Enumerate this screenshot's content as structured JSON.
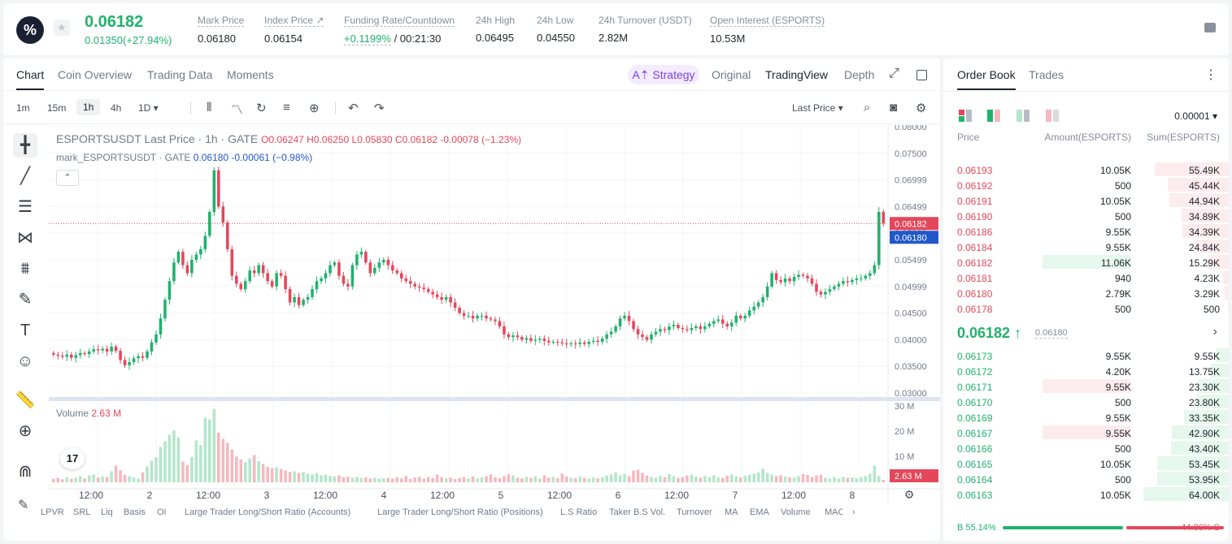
{
  "header": {
    "logo_glyph": "%",
    "star": "★",
    "last_price": "0.06182",
    "change": "0.01350(+27.94%)",
    "stats": [
      {
        "label": "Mark Price",
        "value": "0.06180"
      },
      {
        "label": "Index Price ↗",
        "value": "0.06154"
      },
      {
        "label": "Funding Rate/Countdown",
        "value_green": "+0.1199%",
        "value": " / 00:21:30"
      },
      {
        "label": "24h High",
        "value": "0.06495"
      },
      {
        "label": "24h Low",
        "value": "0.04550"
      },
      {
        "label": "24h Turnover (USDT)",
        "value": "2.82M"
      },
      {
        "label": "Open Interest (ESPORTS)",
        "value": "10.53M"
      }
    ]
  },
  "chart_tabs": [
    "Chart",
    "Coin Overview",
    "Trading Data",
    "Moments"
  ],
  "view_controls": {
    "strategy": "A⇡ Strategy",
    "original": "Original",
    "tradingview": "TradingView",
    "depth": "Depth",
    "expand": "⤢"
  },
  "timeframes": [
    "1m",
    "15m",
    "1h",
    "4h",
    "1D ▾"
  ],
  "toolbar_icons": {
    "candles": "⫴",
    "indicators": "〽",
    "replay": "↻",
    "templates": "≡",
    "alert": "⊕",
    "undo": "↶",
    "redo": "↷",
    "search": "⌕",
    "camera": "◙",
    "settings": "⚙"
  },
  "last_price_selector": "Last Price ▾",
  "draw_icons": [
    "╋",
    "╱",
    "☰",
    "⋈",
    "⩩",
    "✎",
    "T",
    "☺",
    "📏",
    "⊕",
    "⋒"
  ],
  "legend": {
    "main": "ESPORTSUSDT Last Price · 1h · GATE",
    "ohlc": "O0.06247 H0.06250 L0.05830 C0.06182 -0.00078 (−1.23%)",
    "mark_label": "mark_ESPORTSUSDT · GATE",
    "mark_values": "0.06180 -0.00061 (−0.98%)",
    "collapse": "⌃",
    "volume_label": "Volume",
    "volume_value": "2.63 M"
  },
  "tv_logo": "17",
  "indicators": [
    "LPVR",
    "SRL",
    "Liq",
    "Basis",
    "OI",
    "Large Trader Long/Short Ratio (Accounts)",
    "Large Trader Long/Short Ratio (Positions)",
    "L.S Ratio",
    "Taker B.S Vol.",
    "Turnover",
    "MA",
    "EMA",
    "Volume",
    "MACD"
  ],
  "chart_data": {
    "type": "candlestick",
    "price_axis": [
      "0.08000",
      "0.07500",
      "0.06999",
      "0.06499",
      "0.05999",
      "0.05499",
      "0.04999",
      "0.04500",
      "0.04000",
      "0.03500",
      "0.03000"
    ],
    "volume_axis": [
      "30 M",
      "20 M",
      "10 M"
    ],
    "x_ticks": [
      "12:00",
      "2",
      "12:00",
      "3",
      "12:00",
      "4",
      "12:00",
      "5",
      "12:00",
      "6",
      "12:00",
      "7",
      "12:00",
      "8"
    ],
    "last_price_label": "0.06182",
    "mark_price_label": "0.06180",
    "volume_last_label": "2.63 M",
    "ylim": [
      0.03,
      0.08
    ],
    "close_path": [
      0.0372,
      0.037,
      0.0368,
      0.0372,
      0.0366,
      0.0371,
      0.0375,
      0.0373,
      0.0378,
      0.0382,
      0.038,
      0.0383,
      0.0378,
      0.0387,
      0.0379,
      0.0362,
      0.0352,
      0.0358,
      0.0365,
      0.0369,
      0.0366,
      0.0378,
      0.0395,
      0.041,
      0.044,
      0.0475,
      0.051,
      0.0545,
      0.0565,
      0.054,
      0.0525,
      0.055,
      0.056,
      0.057,
      0.0595,
      0.064,
      0.0718,
      0.065,
      0.062,
      0.057,
      0.052,
      0.0505,
      0.0495,
      0.051,
      0.053,
      0.0525,
      0.054,
      0.0525,
      0.051,
      0.05,
      0.0525,
      0.052,
      0.0495,
      0.047,
      0.048,
      0.0465,
      0.0475,
      0.048,
      0.0495,
      0.051,
      0.0515,
      0.0525,
      0.054,
      0.0545,
      0.052,
      0.0505,
      0.05,
      0.054,
      0.056,
      0.0565,
      0.0545,
      0.0525,
      0.0535,
      0.0545,
      0.055,
      0.054,
      0.053,
      0.0525,
      0.0515,
      0.051,
      0.0505,
      0.05,
      0.0498,
      0.0495,
      0.049,
      0.0485,
      0.048,
      0.0475,
      0.048,
      0.047,
      0.046,
      0.045,
      0.0445,
      0.0445,
      0.044,
      0.0445,
      0.0445,
      0.044,
      0.0438,
      0.0435,
      0.0425,
      0.041,
      0.0405,
      0.0408,
      0.0405,
      0.04,
      0.0403,
      0.0398,
      0.04,
      0.0402,
      0.0398,
      0.0395,
      0.0396,
      0.0395,
      0.0393,
      0.0392,
      0.0393,
      0.0392,
      0.0395,
      0.0392,
      0.0396,
      0.0398,
      0.0396,
      0.0402,
      0.041,
      0.0415,
      0.0425,
      0.044,
      0.0445,
      0.0435,
      0.042,
      0.041,
      0.0405,
      0.04,
      0.041,
      0.0415,
      0.042,
      0.0418,
      0.0425,
      0.0428,
      0.0422,
      0.042,
      0.0418,
      0.0422,
      0.0425,
      0.042,
      0.0425,
      0.043,
      0.0435,
      0.0438,
      0.043,
      0.0425,
      0.0432,
      0.0445,
      0.044,
      0.0445,
      0.0455,
      0.0462,
      0.047,
      0.048,
      0.05,
      0.0525,
      0.0512,
      0.0508,
      0.0515,
      0.051,
      0.0518,
      0.0522,
      0.052,
      0.0515,
      0.0505,
      0.049,
      0.0485,
      0.049,
      0.0495,
      0.05,
      0.0505,
      0.051,
      0.0508,
      0.0512,
      0.0515,
      0.0515,
      0.052,
      0.0525,
      0.054,
      0.064,
      0.0618
    ],
    "volumes": [
      1.5,
      1.8,
      1.2,
      2.1,
      1.4,
      1.9,
      2.5,
      1.6,
      2.8,
      3.2,
      1.9,
      2.4,
      2.2,
      4.5,
      6.8,
      4.9,
      3.1,
      2.5,
      2.0,
      1.5,
      4.1,
      6.5,
      8.9,
      10.2,
      14.5,
      16.8,
      19.5,
      21.3,
      18.4,
      8.5,
      7.1,
      10.4,
      17.2,
      15.3,
      26.5,
      25.8,
      30.1,
      20.4,
      17.8,
      16.2,
      13.5,
      10.6,
      9.4,
      8.3,
      9.8,
      11.2,
      8.7,
      7.5,
      6.4,
      5.8,
      6.2,
      5.5,
      4.8,
      4.2,
      4.5,
      3.9,
      4.2,
      3.5,
      3.2,
      3.8,
      2.9,
      3.1,
      2.6,
      2.4,
      2.8,
      2.1,
      2.3,
      1.9,
      2.2,
      1.8,
      2.0,
      1.6,
      1.9,
      1.5,
      1.7,
      1.8,
      1.5,
      2.1,
      1.6,
      2.6,
      1.4,
      1.9,
      2.3,
      1.5,
      2.1,
      1.8,
      3.1,
      2.1,
      1.6,
      1.9,
      1.3,
      1.8,
      2.1,
      1.5,
      2.4,
      1.6,
      2.0,
      2.6,
      3.3,
      2.1,
      1.7,
      2.5,
      3.4,
      2.8,
      1.9,
      1.6,
      2.2,
      1.8,
      2.4,
      1.5,
      2.9,
      1.9,
      2.2,
      1.7,
      3.5,
      2.4,
      1.9,
      1.6,
      2.4,
      1.9,
      1.5,
      2.0,
      1.6,
      2.1,
      2.8,
      3.2,
      4.1,
      2.9,
      3.4,
      2.5,
      4.8,
      5.2,
      3.9,
      2.8,
      2.2,
      1.9,
      2.6,
      2.1,
      3.4,
      2.5,
      1.8,
      2.2,
      2.8,
      3.1,
      2.4,
      1.9,
      2.6,
      2.2,
      2.9,
      2.1,
      1.8,
      2.7,
      3.2,
      2.4,
      2.0,
      2.7,
      3.1,
      3.5,
      4.1,
      5.6,
      3.8,
      3.2,
      2.5,
      2.9,
      2.3,
      2.1,
      1.9,
      2.5,
      3.4,
      3.1,
      2.2,
      2.8,
      3.1,
      1.9,
      1.5,
      2.2,
      1.6,
      2.1,
      1.8,
      2.0,
      1.7,
      2.1,
      2.6,
      3.5,
      6.8,
      2.6
    ]
  },
  "order_book": {
    "tabs": [
      "Order Book",
      "Trades"
    ],
    "more": "⋮",
    "precision": "0.00001 ▾",
    "headers": [
      "Price",
      "Amount(ESPORTS)",
      "Sum(ESPORTS)"
    ],
    "asks": [
      {
        "price": "0.06193",
        "amount": "10.05K",
        "sum": "55.49K",
        "depth": 0.87,
        "amt_hl": 0
      },
      {
        "price": "0.06192",
        "amount": "500",
        "sum": "45.44K",
        "depth": 0.71,
        "amt_hl": 0
      },
      {
        "price": "0.06191",
        "amount": "10.05K",
        "sum": "44.94K",
        "depth": 0.7,
        "amt_hl": 0
      },
      {
        "price": "0.06190",
        "amount": "500",
        "sum": "34.89K",
        "depth": 0.55,
        "amt_hl": 0
      },
      {
        "price": "0.06186",
        "amount": "9.55K",
        "sum": "34.39K",
        "depth": 0.54,
        "amt_hl": 0
      },
      {
        "price": "0.06184",
        "amount": "9.55K",
        "sum": "24.84K",
        "depth": 0.39,
        "amt_hl": 0
      },
      {
        "price": "0.06182",
        "amount": "11.06K",
        "sum": "15.29K",
        "depth": 0.24,
        "amt_hl": 1
      },
      {
        "price": "0.06181",
        "amount": "940",
        "sum": "4.23K",
        "depth": 0.07,
        "amt_hl": 0
      },
      {
        "price": "0.06180",
        "amount": "2.79K",
        "sum": "3.29K",
        "depth": 0.05,
        "amt_hl": 0
      },
      {
        "price": "0.06178",
        "amount": "500",
        "sum": "500",
        "depth": 0.01,
        "amt_hl": 0
      }
    ],
    "mid_price": "0.06182 ↑",
    "mid_mark": "0.06180",
    "mid_chevron": "›",
    "bids": [
      {
        "price": "0.06173",
        "amount": "9.55K",
        "sum": "9.55K",
        "depth": 0.15,
        "amt_hl": 0
      },
      {
        "price": "0.06172",
        "amount": "4.20K",
        "sum": "13.75K",
        "depth": 0.21,
        "amt_hl": 0
      },
      {
        "price": "0.06171",
        "amount": "9.55K",
        "sum": "23.30K",
        "depth": 0.36,
        "amt_hl": 1
      },
      {
        "price": "0.06170",
        "amount": "500",
        "sum": "23.80K",
        "depth": 0.37,
        "amt_hl": 0
      },
      {
        "price": "0.06169",
        "amount": "9.55K",
        "sum": "33.35K",
        "depth": 0.52,
        "amt_hl": 0
      },
      {
        "price": "0.06167",
        "amount": "9.55K",
        "sum": "42.90K",
        "depth": 0.67,
        "amt_hl": 1
      },
      {
        "price": "0.06166",
        "amount": "500",
        "sum": "43.40K",
        "depth": 0.68,
        "amt_hl": 0
      },
      {
        "price": "0.06165",
        "amount": "10.05K",
        "sum": "53.45K",
        "depth": 0.84,
        "amt_hl": 0
      },
      {
        "price": "0.06164",
        "amount": "500",
        "sum": "53.95K",
        "depth": 0.84,
        "amt_hl": 0
      },
      {
        "price": "0.06163",
        "amount": "10.05K",
        "sum": "64.00K",
        "depth": 1.0,
        "amt_hl": 0
      }
    ],
    "buy_ratio": "B 55.14%",
    "sell_ratio": "44.86% S",
    "buy_fraction": 0.5514
  },
  "colors": {
    "up": "#20b26c",
    "down": "#e4475b",
    "up_vol": "#b4e6cc",
    "down_vol": "#f5b8c0",
    "mark_blue": "#2158c9"
  }
}
